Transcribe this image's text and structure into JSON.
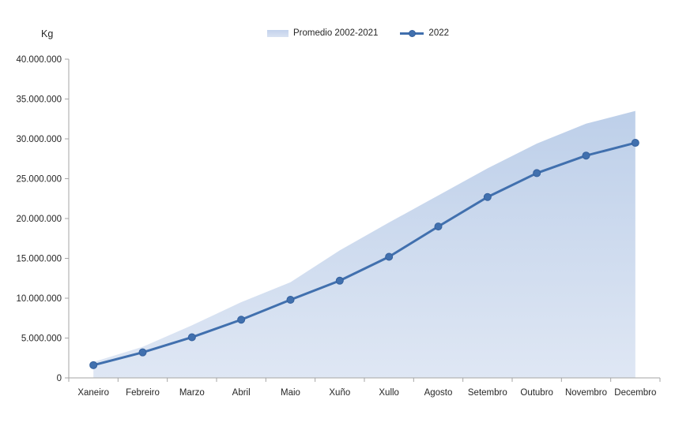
{
  "chart_data": {
    "type": "combo",
    "categories": [
      "Xaneiro",
      "Febreiro",
      "Marzo",
      "Abril",
      "Maio",
      "Xuño",
      "Xullo",
      "Agosto",
      "Setembro",
      "Outubro",
      "Novembro",
      "Decembro"
    ],
    "series": [
      {
        "name": "Promedio 2002-2021",
        "type": "area",
        "values": [
          2000000,
          3900000,
          6600000,
          9500000,
          12000000,
          16000000,
          19500000,
          22900000,
          26300000,
          29400000,
          31900000,
          33500000
        ]
      },
      {
        "name": "2022",
        "type": "line",
        "values": [
          1600000,
          3200000,
          5100000,
          7300000,
          9800000,
          12200000,
          15200000,
          19000000,
          22700000,
          25700000,
          27900000,
          29500000
        ]
      }
    ],
    "title": "",
    "xlabel": "",
    "ylabel": "Kg",
    "ylim": [
      0,
      40000000
    ],
    "ytick_step": 5000000,
    "ytick_labels": [
      "0",
      "5.000.000",
      "10.000.000",
      "15.000.000",
      "20.000.000",
      "25.000.000",
      "30.000.000",
      "35.000.000",
      "40.000.000"
    ],
    "legend_position": "top-center",
    "grid": false
  },
  "colors": {
    "line": "#4170ae",
    "marker_edge": "#35619e",
    "area_top": "#bdcfe9",
    "area_bottom": "#dfe7f4",
    "axis": "#a6a6a6",
    "text": "#262626"
  }
}
